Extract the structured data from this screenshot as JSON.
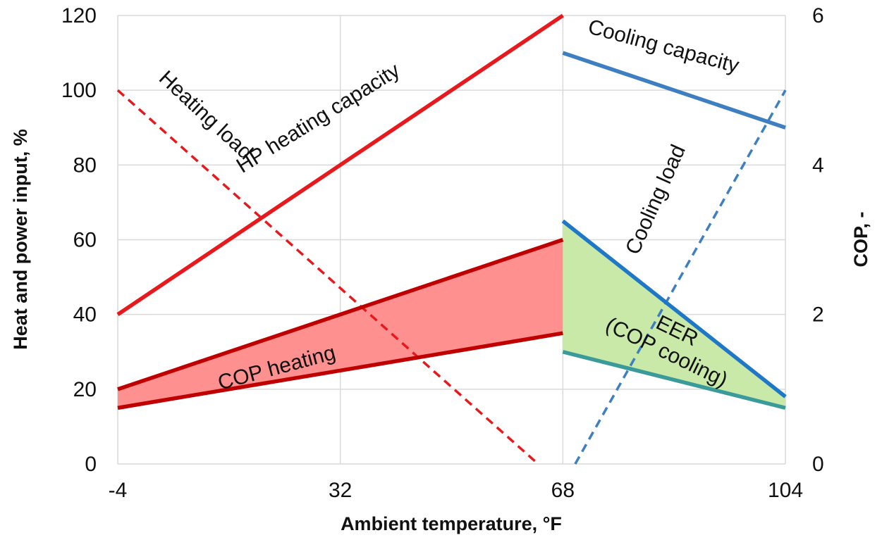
{
  "chart_data": {
    "type": "line",
    "xlabel": "Ambient temperature, °F",
    "ylabel": "Heat and power input, %",
    "y2label": "COP, -",
    "xlim": [
      -4,
      104
    ],
    "ylim": [
      0,
      120
    ],
    "y2lim": [
      0,
      6
    ],
    "xticks": [
      "-4",
      "32",
      "68",
      "104"
    ],
    "yticks": [
      "0",
      "20",
      "40",
      "60",
      "80",
      "100",
      "120"
    ],
    "y2ticks": [
      "0",
      "2",
      "4",
      "6"
    ],
    "grid": true,
    "series": [
      {
        "label": "HP heating capacity",
        "axis": "left",
        "color": "#e8191d",
        "dashed": false,
        "x": [
          -4,
          68
        ],
        "y": [
          40,
          120
        ]
      },
      {
        "label": "Heating load",
        "axis": "left",
        "color": "#e8191d",
        "dashed": true,
        "x": [
          -4,
          64
        ],
        "y": [
          100,
          0
        ]
      },
      {
        "label": "Cooling capacity",
        "axis": "left",
        "color": "#3d7fc1",
        "dashed": false,
        "x": [
          68,
          104
        ],
        "y": [
          110,
          90
        ]
      },
      {
        "label": "Cooling load",
        "axis": "left",
        "color": "#3d7fc1",
        "dashed": true,
        "x": [
          70,
          104
        ],
        "y": [
          0,
          100
        ]
      },
      {
        "label": "COP heating",
        "axis": "left",
        "color": "#c00000",
        "dashed": false,
        "x": [
          -4,
          68
        ],
        "y": [
          20,
          60
        ]
      },
      {
        "label": "",
        "axis": "left",
        "color": "#c00000",
        "dashed": false,
        "x": [
          -4,
          68
        ],
        "y": [
          15,
          35
        ]
      },
      {
        "label": "EER (COP cooling)",
        "axis": "left",
        "color": "#1f77c8",
        "dashed": false,
        "x": [
          68,
          104
        ],
        "y": [
          65,
          18
        ]
      },
      {
        "label": "",
        "axis": "left",
        "color": "#3b9a9a",
        "dashed": false,
        "x": [
          68,
          104
        ],
        "y": [
          30,
          15
        ]
      }
    ],
    "fills": [
      {
        "color": "#ff9090",
        "upper": {
          "x": [
            -4,
            68
          ],
          "y": [
            20,
            60
          ]
        },
        "lower": {
          "x": [
            -4,
            68
          ],
          "y": [
            15,
            35
          ]
        }
      },
      {
        "color": "#c9e9a8",
        "upper": {
          "x": [
            68,
            104
          ],
          "y": [
            65,
            18
          ]
        },
        "lower": {
          "x": [
            68,
            104
          ],
          "y": [
            30,
            15
          ]
        }
      }
    ]
  }
}
